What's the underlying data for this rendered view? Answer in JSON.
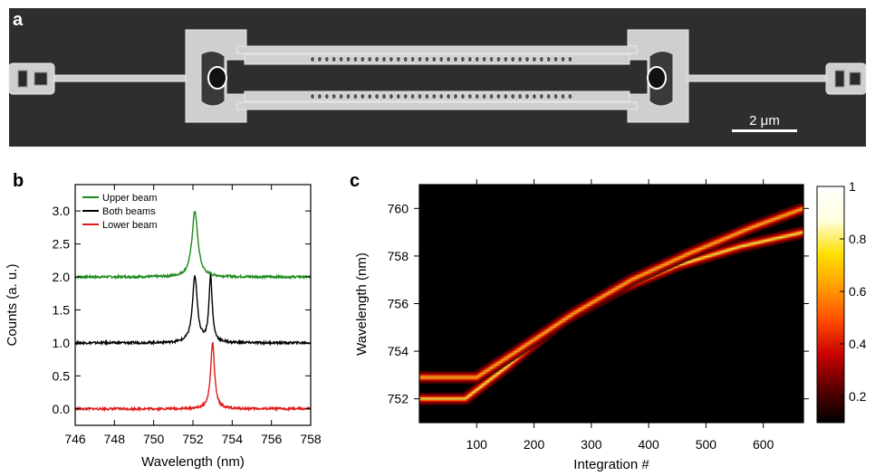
{
  "panels": {
    "a": {
      "label": "a",
      "scalebar_label": "2 μm",
      "colors": {
        "background": "#2a2a2a",
        "structure": "#cfcfcf"
      }
    },
    "b": {
      "label": "b"
    },
    "c": {
      "label": "c"
    }
  },
  "chart_data": [
    {
      "panel": "b",
      "type": "line",
      "xlabel": "Wavelength (nm)",
      "ylabel": "Counts (a. u.)",
      "xlim": [
        746,
        758
      ],
      "ylim": [
        -0.25,
        3.4
      ],
      "xticks": [
        746,
        748,
        750,
        752,
        754,
        756,
        758
      ],
      "xtick_labels": [
        "746",
        "748",
        "750",
        "752",
        "754",
        "756",
        "758"
      ],
      "yticks": [
        0,
        0.5,
        1,
        1.5,
        2,
        2.5,
        3
      ],
      "ytick_labels": [
        "0.0",
        "0.5",
        "1.0",
        "1.5",
        "2.0",
        "2.5",
        "3.0"
      ],
      "legend_position": "top-left",
      "grid": false,
      "series": [
        {
          "name": "Upper beam",
          "color": "#1a8a1a",
          "baseline": 2.0,
          "peaks": [
            {
              "center": 752.1,
              "amplitude": 1.0,
              "width": 0.18
            }
          ]
        },
        {
          "name": "Both beams",
          "color": "#000000",
          "baseline": 1.0,
          "peaks": [
            {
              "center": 752.1,
              "amplitude": 1.0,
              "width": 0.15
            },
            {
              "center": 752.9,
              "amplitude": 1.0,
              "width": 0.1
            }
          ]
        },
        {
          "name": "Lower beam",
          "color": "#e01a1a",
          "baseline": 0.0,
          "peaks": [
            {
              "center": 753.0,
              "amplitude": 1.0,
              "width": 0.12
            }
          ]
        }
      ]
    },
    {
      "panel": "c",
      "type": "heatmap",
      "xlabel": "Integration #",
      "ylabel": "Wavelength (nm)",
      "xlim": [
        0,
        670
      ],
      "ylim": [
        751,
        761
      ],
      "xticks": [
        100,
        200,
        300,
        400,
        500,
        600
      ],
      "xtick_labels": [
        "100",
        "200",
        "300",
        "400",
        "500",
        "600"
      ],
      "yticks": [
        752,
        754,
        756,
        758,
        760
      ],
      "ytick_labels": [
        "752",
        "754",
        "756",
        "758",
        "760"
      ],
      "colorbar": {
        "range": [
          0.1,
          1.0
        ],
        "ticks": [
          0.2,
          0.4,
          0.6,
          0.8,
          1.0
        ],
        "tick_labels": [
          "0.2",
          "0.4",
          "0.6",
          "0.8",
          "1"
        ],
        "stops": [
          "#000000",
          "#5a0000",
          "#c80000",
          "#ff4a00",
          "#ff9c00",
          "#ffe000",
          "#ffffe0",
          "#ffffff"
        ]
      },
      "traces": [
        {
          "x": [
            0,
            80,
            150,
            250,
            350,
            450,
            560,
            670
          ],
          "wavelength": [
            752.0,
            752.0,
            753.3,
            755.3,
            756.6,
            757.6,
            758.4,
            759.0
          ],
          "intensity": 1.0
        },
        {
          "x": [
            0,
            100,
            170,
            270,
            370,
            470,
            580,
            670
          ],
          "wavelength": [
            752.9,
            752.9,
            754.0,
            755.6,
            757.0,
            758.1,
            759.2,
            760.0
          ],
          "intensity": 0.85
        }
      ]
    }
  ]
}
